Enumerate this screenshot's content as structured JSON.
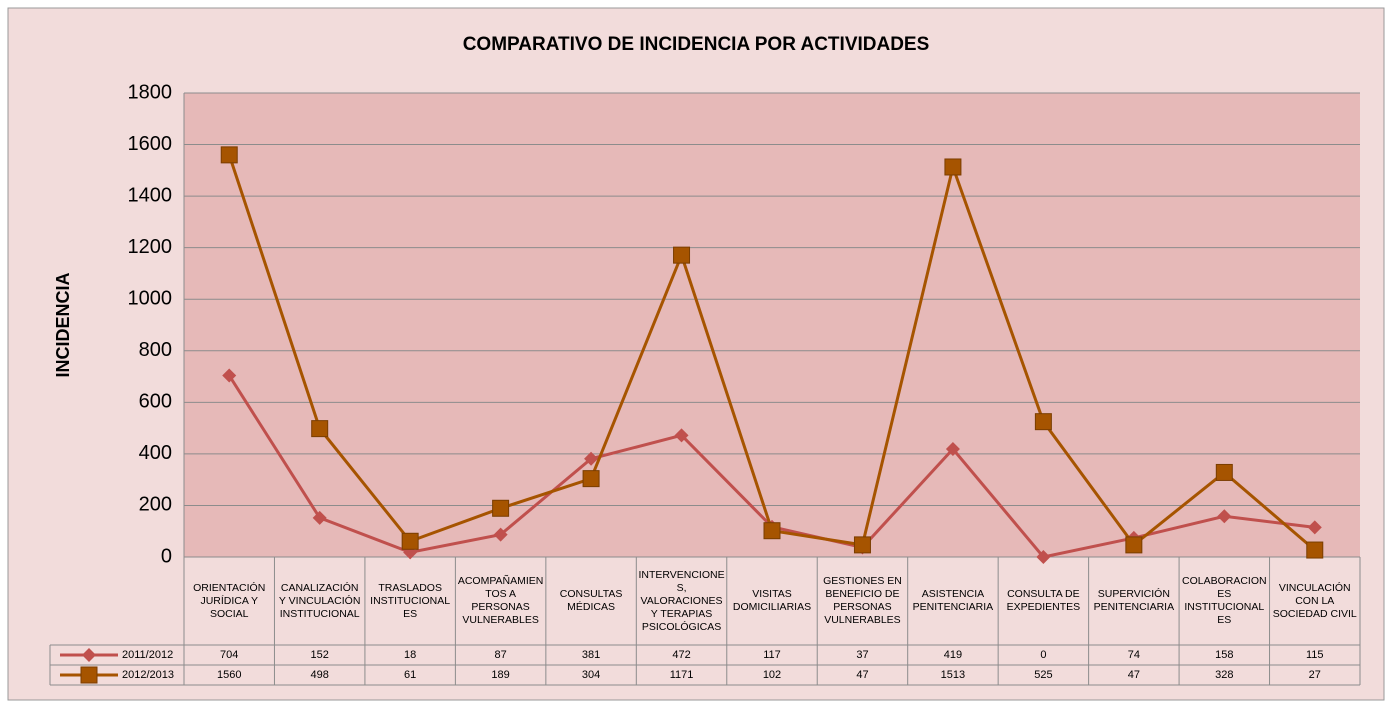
{
  "chart_data": {
    "type": "line",
    "title": "COMPARATIVO DE INCIDENCIA POR ACTIVIDADES",
    "y_label": "INCIDENCIA",
    "categories": [
      "ORIENTACIÓN JURÍDICA Y SOCIAL",
      "CANALIZACIÓN Y VINCULACIÓN INSTITUCIONAL",
      "TRASLADOS INSTITUCIONALES",
      "ACOMPAÑAMIENTOS A PERSONAS VULNERABLES",
      "CONSULTAS MÉDICAS",
      "INTERVENCIONES, VALORACIONES Y TERAPIAS PSICOLÓGICAS",
      "VISITAS DOMICILIARIAS",
      "GESTIONES EN BENEFICIO DE PERSONAS VULNERABLES",
      "ASISTENCIA PENITENCIARIA",
      "CONSULTA DE EXPEDIENTES",
      "SUPERVICIÓN PENITENCIARIA",
      "COLABORACIONES INSTITUCIONALES",
      "VINCULACIÓN CON LA SOCIEDAD CIVIL"
    ],
    "series": [
      {
        "name": "2011/2012",
        "color": "#c0504d",
        "marker": "diamond",
        "values": [
          704,
          152,
          18,
          87,
          381,
          472,
          117,
          37,
          419,
          0,
          74,
          158,
          115
        ]
      },
      {
        "name": "2012/2013",
        "color": "#a65400",
        "marker": "square",
        "values": [
          1560,
          498,
          61,
          189,
          304,
          1171,
          102,
          47,
          1513,
          525,
          47,
          328,
          27
        ]
      }
    ],
    "ylim": [
      0,
      1800
    ],
    "yticks": [
      0,
      200,
      400,
      600,
      800,
      1000,
      1200,
      1400,
      1600,
      1800
    ],
    "grid": true
  }
}
